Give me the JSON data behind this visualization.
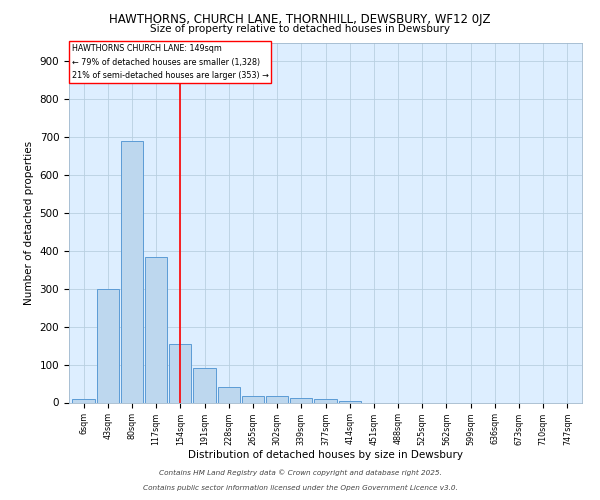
{
  "title": "HAWTHORNS, CHURCH LANE, THORNHILL, DEWSBURY, WF12 0JZ",
  "subtitle": "Size of property relative to detached houses in Dewsbury",
  "xlabel": "Distribution of detached houses by size in Dewsbury",
  "ylabel": "Number of detached properties",
  "bar_labels": [
    "6sqm",
    "43sqm",
    "80sqm",
    "117sqm",
    "154sqm",
    "191sqm",
    "228sqm",
    "265sqm",
    "302sqm",
    "339sqm",
    "377sqm",
    "414sqm",
    "451sqm",
    "488sqm",
    "525sqm",
    "562sqm",
    "599sqm",
    "636sqm",
    "673sqm",
    "710sqm",
    "747sqm"
  ],
  "bar_values": [
    10,
    300,
    690,
    385,
    155,
    90,
    40,
    18,
    18,
    13,
    8,
    3,
    0,
    0,
    0,
    0,
    0,
    0,
    0,
    0,
    0
  ],
  "bar_color": "#bdd7ee",
  "bar_edge_color": "#5b9bd5",
  "vline_x": 4,
  "vline_color": "red",
  "annotation_title": "HAWTHORNS CHURCH LANE: 149sqm",
  "annotation_line1": "← 79% of detached houses are smaller (1,328)",
  "annotation_line2": "21% of semi-detached houses are larger (353) →",
  "annotation_box_color": "white",
  "annotation_box_edge": "red",
  "ylim": [
    0,
    950
  ],
  "yticks": [
    0,
    100,
    200,
    300,
    400,
    500,
    600,
    700,
    800,
    900
  ],
  "plot_bg_color": "#ddeeff",
  "footer1": "Contains HM Land Registry data © Crown copyright and database right 2025.",
  "footer2": "Contains public sector information licensed under the Open Government Licence v3.0."
}
